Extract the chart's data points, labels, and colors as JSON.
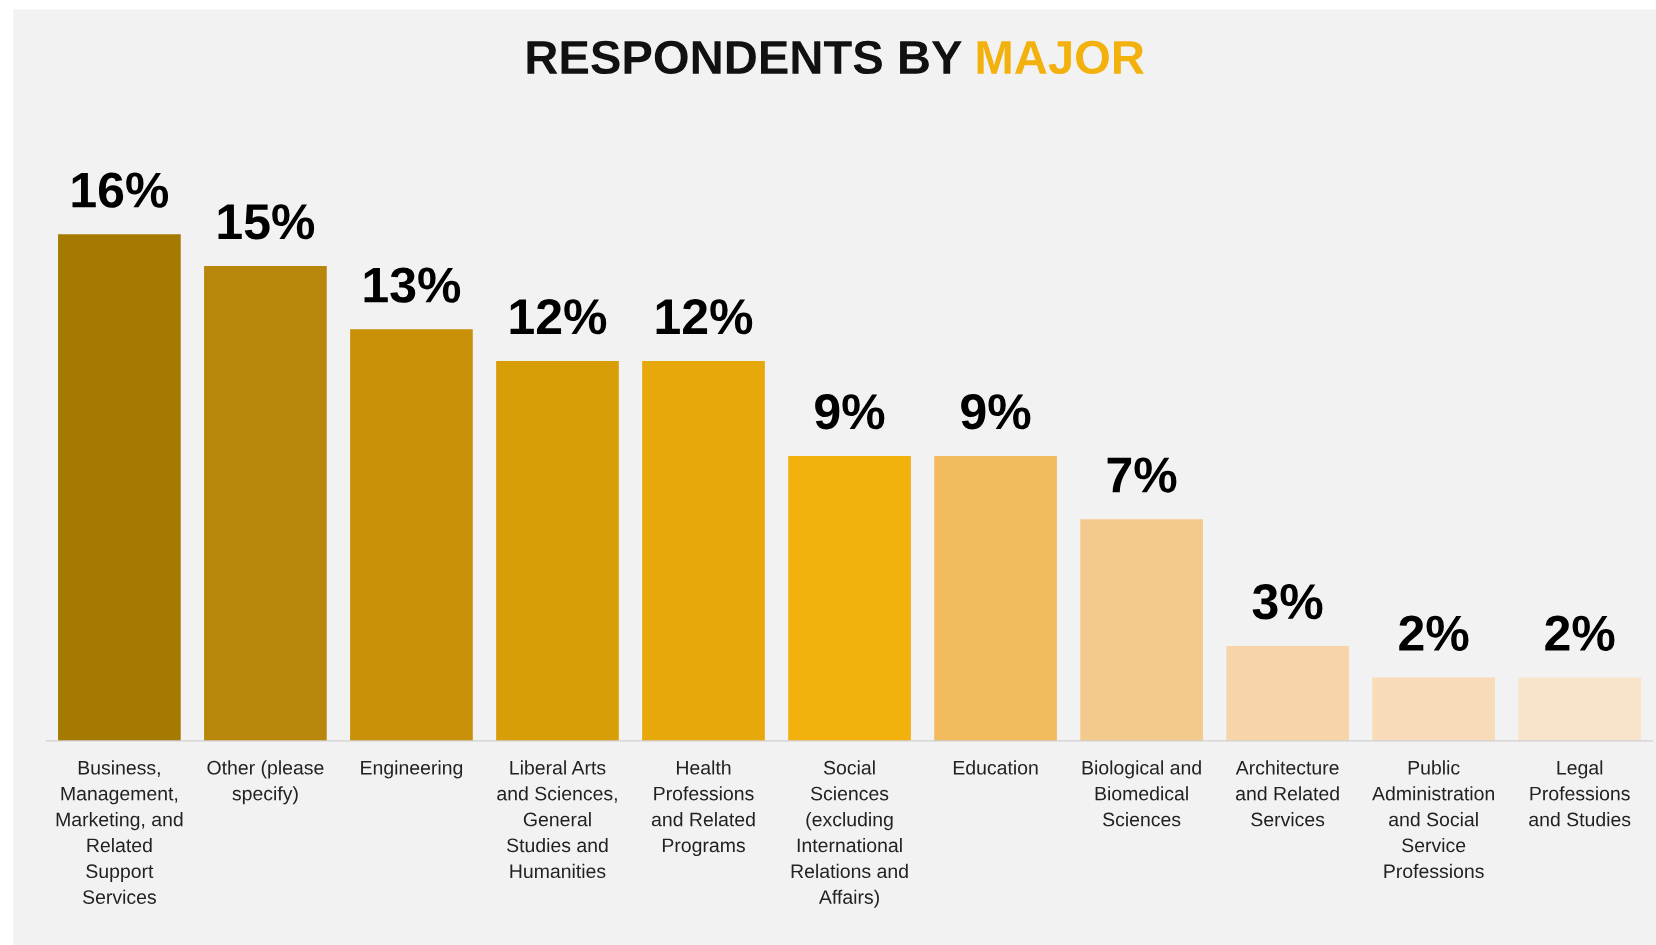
{
  "chart_data": {
    "type": "bar",
    "title": "RESPONDENTS BY MAJOR",
    "categories": [
      "Business, Management, Marketing, and Related Support Services",
      "Other (please specify)",
      "Engineering",
      "Liberal Arts and Sciences, General Studies and Humanities",
      "Health Professions and Related Programs",
      "Social Sciences (excluding International Relations and Affairs)",
      "Education",
      "Biological and Biomedical Sciences",
      "Architecture and Related Services",
      "Public Administration and Social Service Professions",
      "Legal Professions and Studies"
    ],
    "values": [
      16,
      15,
      13,
      12,
      12,
      9,
      9,
      7,
      3,
      2,
      2
    ],
    "value_labels": [
      "16%",
      "15%",
      "13%",
      "12%",
      "12%",
      "9%",
      "9%",
      "7%",
      "3%",
      "2%",
      "2%"
    ],
    "colors": [
      "#a57a00",
      "#b8860a",
      "#c99108",
      "#d89e07",
      "#e6a80a",
      "#f2b10c",
      "#f2bb5e",
      "#f4c98c",
      "#f7d5a8",
      "#f8dcba",
      "#f9e3cb"
    ],
    "grid": false,
    "legend": false
  }
}
